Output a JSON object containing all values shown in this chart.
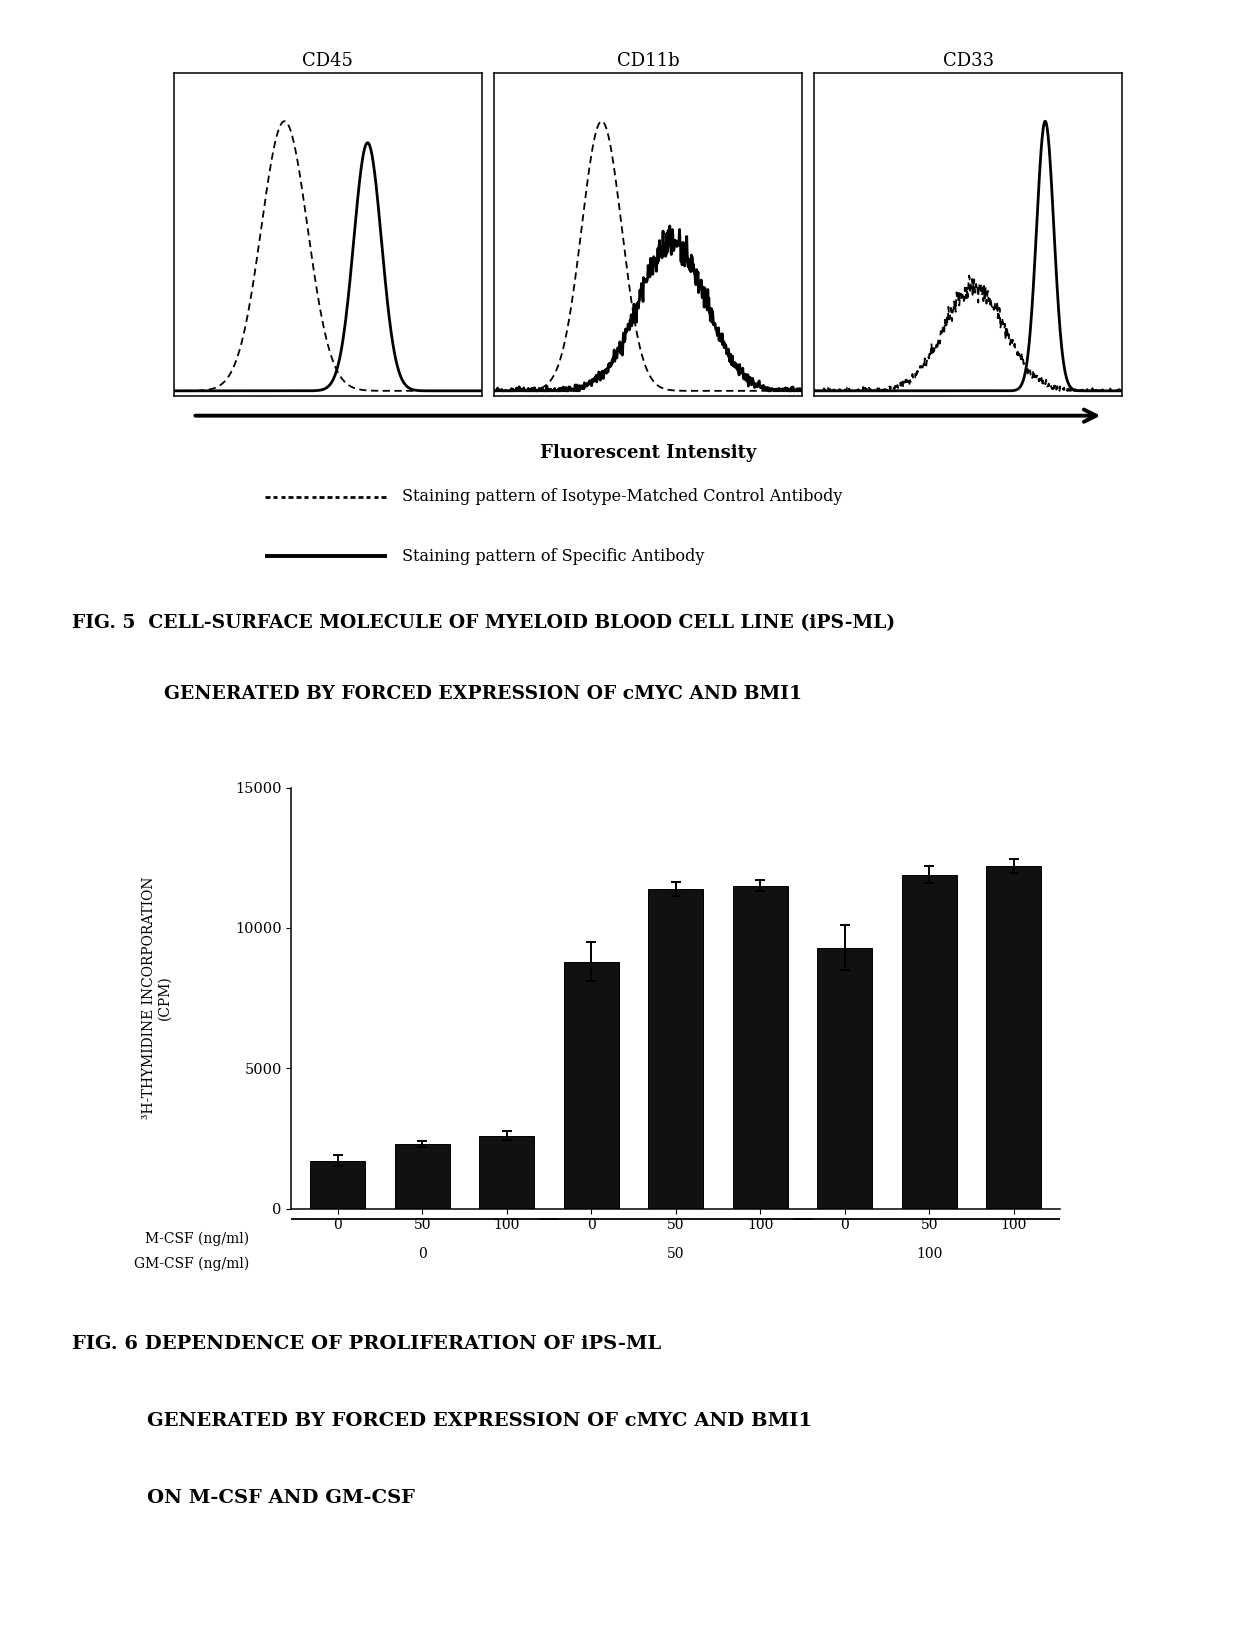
{
  "panel_titles": [
    "CD45",
    "CD11b",
    "CD33"
  ],
  "fig5_xlabel": "Fluorescent Intensity",
  "legend_dashed": "Staining pattern of Isotype-Matched Control Antibody",
  "legend_solid": "Staining pattern of Specific Antibody",
  "fig5_caption_line1": "FIG. 5  CELL-SURFACE MOLECULE OF MYELOID BLOOD CELL LINE (iPS-ML)",
  "fig5_caption_line2": "GENERATED BY FORCED EXPRESSION OF cMYC AND BMI1",
  "bar_values": [
    1700,
    2300,
    2600,
    8800,
    11400,
    11500,
    9300,
    11900,
    12200
  ],
  "bar_errors": [
    200,
    100,
    150,
    700,
    250,
    200,
    800,
    300,
    250
  ],
  "bar_labels_gmcsf": [
    "0",
    "50",
    "100",
    "0",
    "50",
    "100",
    "0",
    "50",
    "100"
  ],
  "bar_labels_mcsf": [
    "0",
    "50",
    "100"
  ],
  "ylabel_line1": "³H-THYMIDINE INCORPORATION",
  "ylabel_line2": "(CPM)",
  "xlabel_gmcsf": "GM-CSF (ng/ml)",
  "xlabel_mcsf": "M-CSF (ng/ml)",
  "ylim": [
    0,
    15000
  ],
  "yticks": [
    0,
    5000,
    10000,
    15000
  ],
  "bar_color": "#111111",
  "fig6_caption_line1": "FIG. 6 DEPENDENCE OF PROLIFERATION OF iPS-ML",
  "fig6_caption_line2": "GENERATED BY FORCED EXPRESSION OF cMYC AND BMI1",
  "fig6_caption_line3": "ON M-CSF AND GM-CSF",
  "bg_color": "#ffffff"
}
